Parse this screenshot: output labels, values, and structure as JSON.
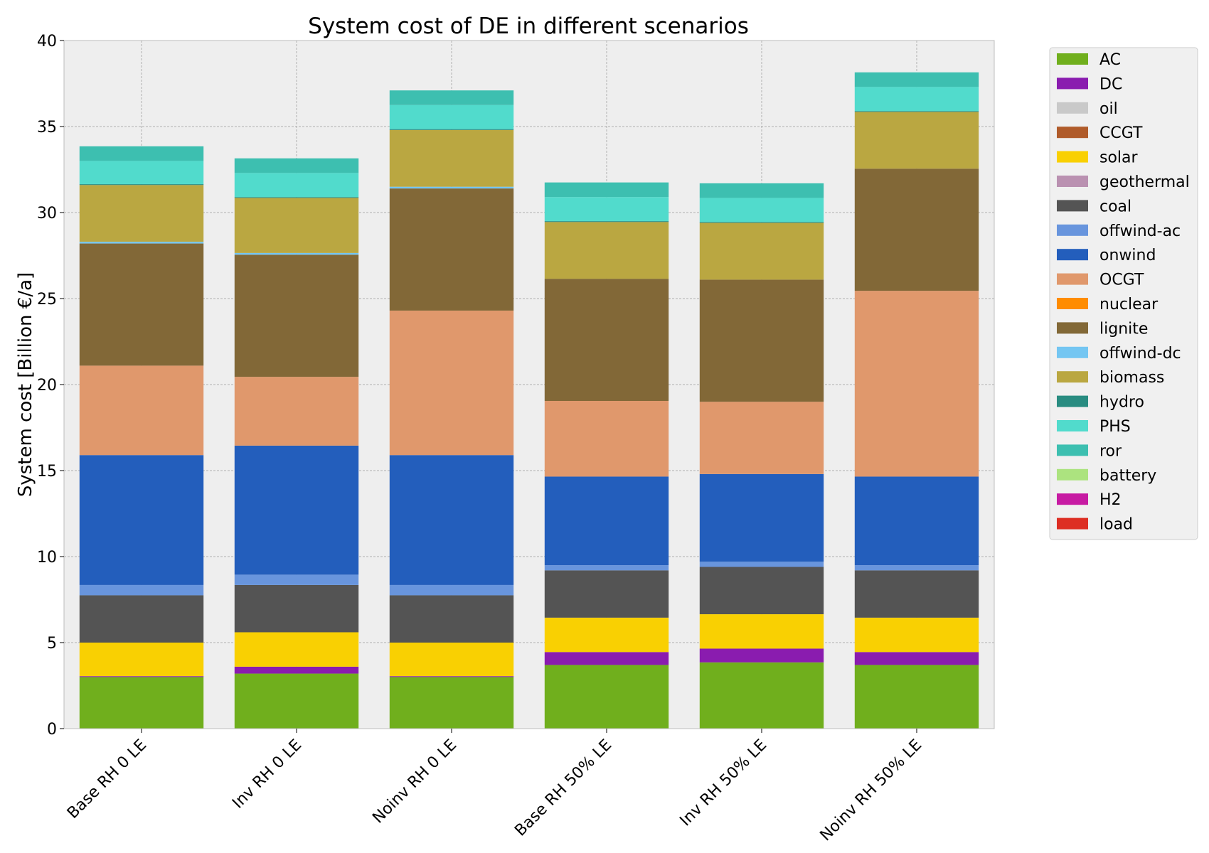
{
  "chart_data": {
    "type": "bar",
    "stacked": true,
    "title": "System cost of DE in different scenarios",
    "xlabel": "",
    "ylabel": "System cost [Billion €/a]",
    "ylim": [
      0,
      40
    ],
    "yticks": [
      0,
      5,
      10,
      15,
      20,
      25,
      30,
      35,
      40
    ],
    "grid": true,
    "legend_position": "outside-right",
    "categories": [
      "Base RH 0 LE",
      "Inv RH 0 LE",
      "Noinv RH 0 LE",
      "Base RH 50% LE",
      "Inv RH 50% LE",
      "Noinv RH 50% LE"
    ],
    "series": [
      {
        "name": "AC",
        "color": "#70af1d",
        "values": [
          3.0,
          3.2,
          3.0,
          3.7,
          3.85,
          3.7
        ]
      },
      {
        "name": "DC",
        "color": "#8a1caf",
        "values": [
          0.05,
          0.4,
          0.05,
          0.75,
          0.8,
          0.75
        ]
      },
      {
        "name": "oil",
        "color": "#c9c9c9",
        "values": [
          0,
          0,
          0,
          0,
          0,
          0
        ]
      },
      {
        "name": "CCGT",
        "color": "#b05b2a",
        "values": [
          0,
          0,
          0,
          0,
          0,
          0
        ]
      },
      {
        "name": "solar",
        "color": "#f9d002",
        "values": [
          1.95,
          2.0,
          1.95,
          2.0,
          2.0,
          2.0
        ]
      },
      {
        "name": "geothermal",
        "color": "#ba91b1",
        "values": [
          0,
          0,
          0,
          0,
          0,
          0
        ]
      },
      {
        "name": "coal",
        "color": "#545454",
        "values": [
          2.75,
          2.75,
          2.75,
          2.75,
          2.75,
          2.75
        ]
      },
      {
        "name": "offwind-ac",
        "color": "#6895dd",
        "values": [
          0.6,
          0.6,
          0.6,
          0.3,
          0.3,
          0.3
        ]
      },
      {
        "name": "onwind",
        "color": "#235ebc",
        "values": [
          7.55,
          7.5,
          7.55,
          5.15,
          5.1,
          5.15
        ]
      },
      {
        "name": "OCGT",
        "color": "#e0986c",
        "values": [
          5.2,
          4.0,
          8.4,
          4.4,
          4.2,
          10.8
        ]
      },
      {
        "name": "nuclear",
        "color": "#ff8c00",
        "values": [
          0,
          0,
          0,
          0,
          0,
          0
        ]
      },
      {
        "name": "lignite",
        "color": "#826837",
        "values": [
          7.1,
          7.1,
          7.1,
          7.1,
          7.1,
          7.1
        ]
      },
      {
        "name": "offwind-dc",
        "color": "#74c6f2",
        "values": [
          0.1,
          0.1,
          0.1,
          0.0,
          0.0,
          0.0
        ]
      },
      {
        "name": "biomass",
        "color": "#baa741",
        "values": [
          3.3,
          3.2,
          3.3,
          3.3,
          3.3,
          3.3
        ]
      },
      {
        "name": "hydro",
        "color": "#298c81",
        "values": [
          0.05,
          0.05,
          0.05,
          0.05,
          0.05,
          0.05
        ]
      },
      {
        "name": "PHS",
        "color": "#51dbcc",
        "values": [
          1.35,
          1.4,
          1.4,
          1.4,
          1.4,
          1.4
        ]
      },
      {
        "name": "ror",
        "color": "#3dbfb0",
        "values": [
          0.85,
          0.85,
          0.85,
          0.85,
          0.85,
          0.85
        ]
      },
      {
        "name": "battery",
        "color": "#ace37f",
        "values": [
          0,
          0,
          0,
          0,
          0,
          0
        ]
      },
      {
        "name": "H2",
        "color": "#c71ba3",
        "values": [
          0,
          0,
          0,
          0,
          0,
          0
        ]
      },
      {
        "name": "load",
        "color": "#dd2e23",
        "values": [
          0,
          0,
          0,
          0,
          0,
          0
        ]
      }
    ]
  }
}
